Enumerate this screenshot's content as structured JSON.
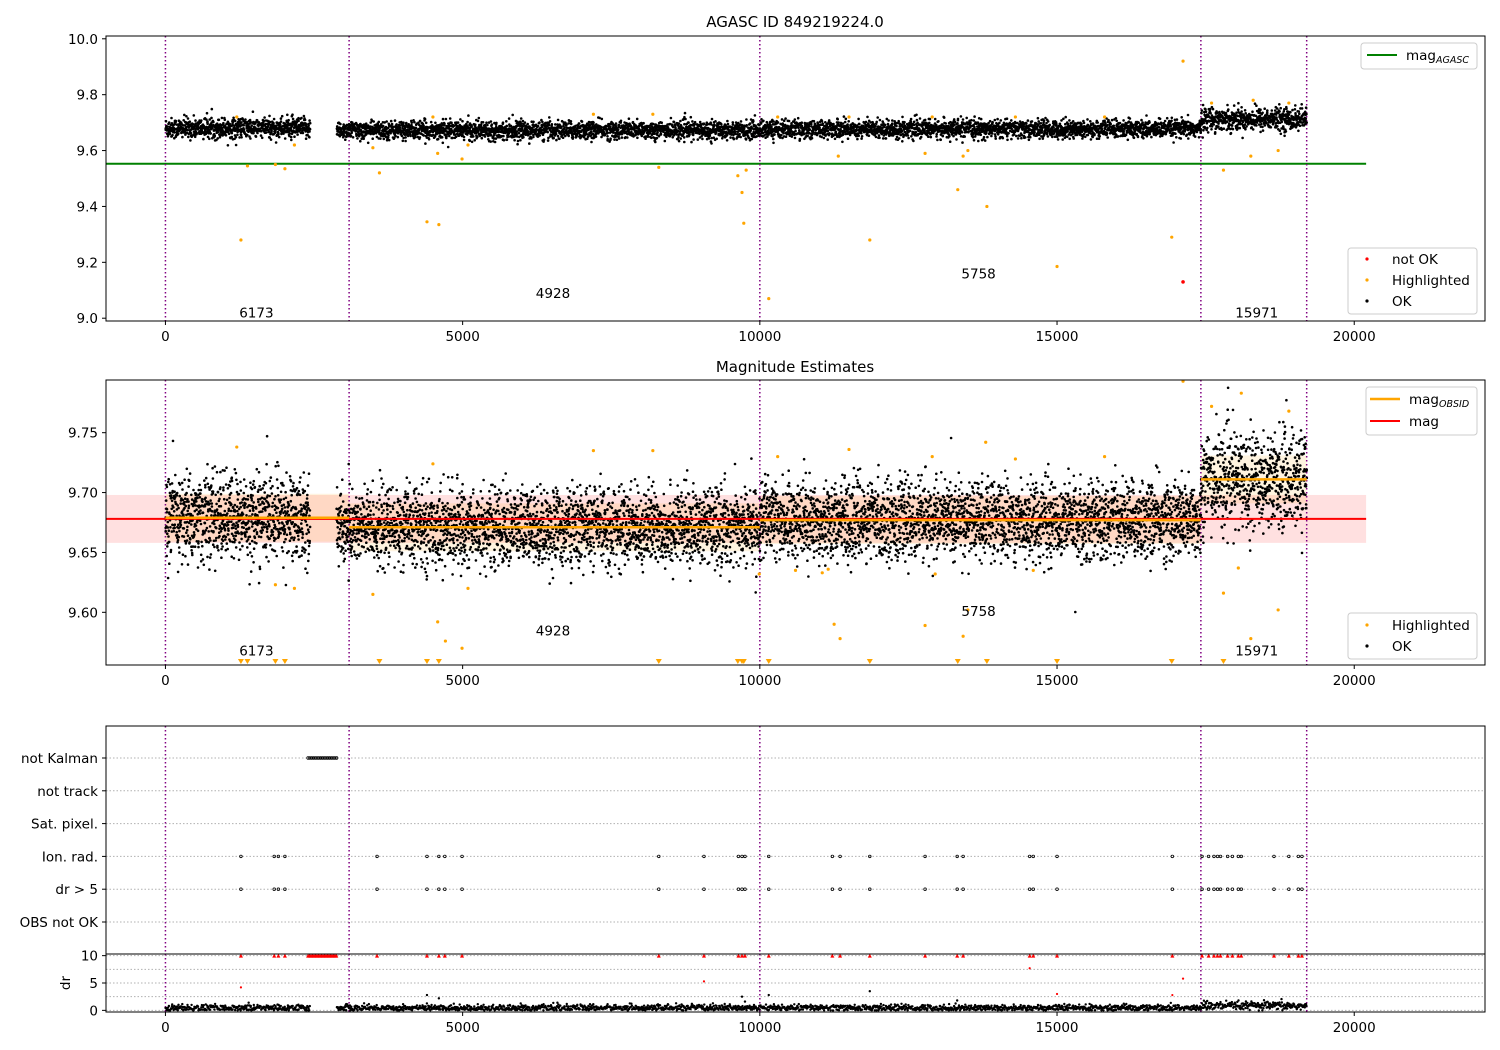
{
  "chart_data": [
    {
      "type": "scatter",
      "title": "AGASC ID 849219224.0",
      "xlim": [
        -1000,
        22200
      ],
      "ylim": [
        8.99,
        10.01
      ],
      "x_ticks": [
        0,
        5000,
        10000,
        15000,
        20000
      ],
      "y_ticks": [
        9.0,
        9.2,
        9.4,
        9.6,
        9.8,
        10.0
      ],
      "grid": false,
      "obsid_boundaries": [
        0,
        3090,
        10000,
        17420,
        19200
      ],
      "obsid_labels": [
        {
          "text": "6173",
          "x": 1530,
          "y": 9.02
        },
        {
          "text": "4928",
          "x": 6520,
          "y": 9.09
        },
        {
          "text": "5758",
          "x": 13680,
          "y": 9.16
        },
        {
          "text": "15971",
          "x": 18360,
          "y": 9.02
        }
      ],
      "reference_line": {
        "name": "mag_AGASC",
        "value": 9.553,
        "x_range": [
          -1000,
          20200
        ],
        "color": "#008000"
      },
      "segments": [
        {
          "x_range": [
            0,
            2430
          ],
          "mean": 9.68,
          "spread": 0.018
        },
        {
          "x_range": [
            2880,
            10000
          ],
          "mean": 9.673,
          "spread": 0.016
        },
        {
          "x_range": [
            10000,
            17420
          ],
          "mean": 9.677,
          "spread": 0.016
        },
        {
          "x_range": [
            17420,
            19200
          ],
          "mean": 9.713,
          "spread": 0.02
        }
      ],
      "series": [
        {
          "name": "not OK",
          "color": "#ff0000",
          "points": [
            [
              17120,
              9.13
            ]
          ]
        },
        {
          "name": "Highlighted",
          "color": "#ffa500",
          "points": [
            [
              1270,
              9.28
            ],
            [
              1380,
              9.545
            ],
            [
              1850,
              9.55
            ],
            [
              2010,
              9.535
            ],
            [
              2170,
              9.62
            ],
            [
              3490,
              9.61
            ],
            [
              3600,
              9.52
            ],
            [
              4400,
              9.345
            ],
            [
              4600,
              9.335
            ],
            [
              4580,
              9.59
            ],
            [
              4990,
              9.57
            ],
            [
              5090,
              9.62
            ],
            [
              8300,
              9.54
            ],
            [
              9630,
              9.51
            ],
            [
              9700,
              9.45
            ],
            [
              9730,
              9.34
            ],
            [
              9770,
              9.53
            ],
            [
              10150,
              9.07
            ],
            [
              11320,
              9.58
            ],
            [
              11850,
              9.28
            ],
            [
              12780,
              9.59
            ],
            [
              13330,
              9.46
            ],
            [
              13420,
              9.58
            ],
            [
              13500,
              9.6
            ],
            [
              13820,
              9.4
            ],
            [
              15000,
              9.185
            ],
            [
              16930,
              9.29
            ],
            [
              17120,
              9.92
            ],
            [
              17800,
              9.53
            ],
            [
              18260,
              9.58
            ],
            [
              18720,
              9.6
            ],
            [
              1200,
              9.72
            ],
            [
              4500,
              9.72
            ],
            [
              7200,
              9.73
            ],
            [
              8200,
              9.73
            ],
            [
              10300,
              9.72
            ],
            [
              11500,
              9.72
            ],
            [
              12900,
              9.72
            ],
            [
              14300,
              9.72
            ],
            [
              15800,
              9.72
            ],
            [
              17600,
              9.77
            ],
            [
              18300,
              9.78
            ],
            [
              18900,
              9.77
            ]
          ]
        },
        {
          "name": "OK",
          "color": "#000000"
        }
      ],
      "legends": [
        {
          "position": "upper-right",
          "entries": [
            "mag_AGASC"
          ]
        },
        {
          "position": "lower-right",
          "entries": [
            "not OK",
            "Highlighted",
            "OK"
          ]
        }
      ]
    },
    {
      "type": "scatter",
      "title": "Magnitude Estimates",
      "xlim": [
        -1000,
        22200
      ],
      "ylim": [
        9.556,
        9.794
      ],
      "x_ticks": [
        0,
        5000,
        10000,
        15000,
        20000
      ],
      "y_ticks": [
        9.6,
        9.65,
        9.7,
        9.75
      ],
      "grid": false,
      "obsid_boundaries": [
        0,
        3090,
        10000,
        17420,
        19200
      ],
      "obsid_labels": [
        {
          "text": "6173",
          "x": 1530,
          "y": 9.568
        },
        {
          "text": "4928",
          "x": 6520,
          "y": 9.585
        },
        {
          "text": "5758",
          "x": 13680,
          "y": 9.601
        },
        {
          "text": "15971",
          "x": 18360,
          "y": 9.568
        }
      ],
      "mag_line": {
        "name": "mag",
        "value": 9.678,
        "band": [
          9.658,
          9.698
        ],
        "x_range": [
          -1000,
          20200
        ],
        "color": "#ff0000"
      },
      "obsid_mag_segments": [
        {
          "x_range": [
            0,
            3090
          ],
          "value": 9.679
        },
        {
          "x_range": [
            3090,
            10000
          ],
          "value": 9.671
        },
        {
          "x_range": [
            10000,
            17420
          ],
          "value": 9.677
        },
        {
          "x_range": [
            17420,
            19200
          ],
          "value": 9.711
        }
      ],
      "segments": [
        {
          "x_range": [
            0,
            2430
          ],
          "mean": 9.679,
          "spread": 0.018
        },
        {
          "x_range": [
            2880,
            10000
          ],
          "mean": 9.671,
          "spread": 0.016
        },
        {
          "x_range": [
            10000,
            17420
          ],
          "mean": 9.677,
          "spread": 0.016
        },
        {
          "x_range": [
            17420,
            19200
          ],
          "mean": 9.711,
          "spread": 0.02
        }
      ],
      "series": [
        {
          "name": "Highlighted",
          "color": "#ffa500",
          "points": [
            [
              1850,
              9.623
            ],
            [
              2170,
              9.62
            ],
            [
              3490,
              9.615
            ],
            [
              4580,
              9.592
            ],
            [
              4710,
              9.576
            ],
            [
              4990,
              9.57
            ],
            [
              5090,
              9.62
            ],
            [
              9990,
              9.632
            ],
            [
              10600,
              9.635
            ],
            [
              11050,
              9.633
            ],
            [
              11150,
              9.636
            ],
            [
              11250,
              9.59
            ],
            [
              11350,
              9.578
            ],
            [
              12780,
              9.589
            ],
            [
              12950,
              9.632
            ],
            [
              13420,
              9.58
            ],
            [
              13500,
              9.602
            ],
            [
              14600,
              9.635
            ],
            [
              17800,
              9.616
            ],
            [
              18050,
              9.637
            ],
            [
              18260,
              9.578
            ],
            [
              18720,
              9.602
            ],
            [
              1200,
              9.738
            ],
            [
              4500,
              9.724
            ],
            [
              7200,
              9.735
            ],
            [
              8200,
              9.735
            ],
            [
              10300,
              9.73
            ],
            [
              11500,
              9.736
            ],
            [
              12900,
              9.73
            ],
            [
              13800,
              9.742
            ],
            [
              14300,
              9.728
            ],
            [
              15800,
              9.73
            ],
            [
              17120,
              9.793
            ],
            [
              17600,
              9.772
            ],
            [
              18100,
              9.783
            ],
            [
              18900,
              9.768
            ]
          ]
        },
        {
          "name": "Highlighted (below axis)",
          "color": "#ffa500",
          "x": [
            1270,
            1380,
            1850,
            2010,
            3600,
            4400,
            4600,
            8300,
            9630,
            9700,
            9730,
            10150,
            11850,
            13330,
            13820,
            15000,
            16930,
            17800
          ]
        },
        {
          "name": "OK",
          "color": "#000000"
        }
      ],
      "legends": [
        {
          "position": "upper-right",
          "entries": [
            "mag_OBSID",
            "mag"
          ]
        },
        {
          "position": "lower-right",
          "entries": [
            "Highlighted",
            "OK"
          ]
        }
      ]
    },
    {
      "type": "scatter",
      "title": "",
      "xlim": [
        -1000,
        22200
      ],
      "y_categories": [
        "not Kalman",
        "not track",
        "Sat. pixel.",
        "Ion. rad.",
        "dr > 5",
        "OBS not OK"
      ],
      "grid": true,
      "obsid_boundaries": [
        0,
        3090,
        10000,
        17420,
        19200
      ],
      "flags": [
        {
          "category": "not Kalman",
          "x_ranges": [
            [
              2400,
              2890
            ]
          ]
        },
        {
          "category": "Ion. rad.",
          "x": [
            1270,
            1830,
            1900,
            2010,
            3560,
            4400,
            4600,
            4700,
            4990,
            8300,
            9060,
            9640,
            9700,
            9750,
            10150,
            11220,
            11350,
            11850,
            12780,
            13320,
            13420,
            14540,
            14600,
            15000,
            16940,
            17440,
            17550,
            17640,
            17700,
            17750,
            17870,
            17950,
            18050,
            18100,
            18650,
            18900,
            19060,
            19120
          ]
        },
        {
          "category": "dr > 5",
          "x": [
            1270,
            1830,
            1900,
            2010,
            3560,
            4400,
            4600,
            4700,
            4990,
            8300,
            9060,
            9640,
            9700,
            9750,
            10150,
            11220,
            11350,
            11850,
            12780,
            13320,
            13420,
            14540,
            14600,
            15000,
            16940,
            17440,
            17550,
            17640,
            17700,
            17750,
            17870,
            17950,
            18050,
            18100,
            18650,
            18900,
            19060,
            19120
          ]
        }
      ]
    },
    {
      "type": "scatter",
      "title": "",
      "xlim": [
        -1000,
        22200
      ],
      "ylim": [
        -0.3,
        10.3
      ],
      "x_ticks": [
        0,
        5000,
        10000,
        15000,
        20000
      ],
      "y_ticks": [
        0,
        5,
        10
      ],
      "ylabel": "dr",
      "grid": true,
      "obsid_boundaries": [
        0,
        3090,
        10000,
        17420,
        19200
      ],
      "segments": [
        {
          "x_range": [
            0,
            2430
          ],
          "mean": 0.45,
          "spread": 0.3
        },
        {
          "x_range": [
            2880,
            17420
          ],
          "mean": 0.45,
          "spread": 0.3
        },
        {
          "x_range": [
            17420,
            19200
          ],
          "mean": 0.8,
          "spread": 0.4
        }
      ],
      "series": [
        {
          "name": "dr capped",
          "color": "#ff0000",
          "x": [
            1270,
            1830,
            1900,
            2010,
            3560,
            4400,
            4600,
            4700,
            4990,
            8300,
            9060,
            9640,
            9700,
            9750,
            10150,
            11220,
            11350,
            11850,
            12780,
            13320,
            13420,
            14540,
            14600,
            15000,
            16940,
            17440,
            17550,
            17640,
            17700,
            17750,
            17870,
            17950,
            18050,
            18100,
            18650,
            18900,
            19060,
            19120
          ],
          "value": 10
        },
        {
          "name": "dr capped (not Kalman)",
          "color": "#ff0000",
          "x_range": [
            2400,
            2890
          ],
          "value": 10
        },
        {
          "name": "dr mid",
          "color": "#ff0000",
          "points": [
            [
              1270,
              4.2
            ],
            [
              9060,
              5.3
            ],
            [
              14540,
              7.7
            ],
            [
              17120,
              5.8
            ],
            [
              16940,
              2.8
            ],
            [
              15000,
              3.0
            ]
          ]
        },
        {
          "name": "dr scattered",
          "color": "#000000",
          "points": [
            [
              1400,
              1.4
            ],
            [
              4400,
              2.8
            ],
            [
              4600,
              2.2
            ],
            [
              9700,
              2.5
            ],
            [
              9750,
              1.6
            ],
            [
              10150,
              2.8
            ],
            [
              11850,
              3.5
            ],
            [
              13320,
              1.8
            ],
            [
              17500,
              1.5
            ],
            [
              18000,
              1.2
            ]
          ]
        }
      ]
    }
  ]
}
